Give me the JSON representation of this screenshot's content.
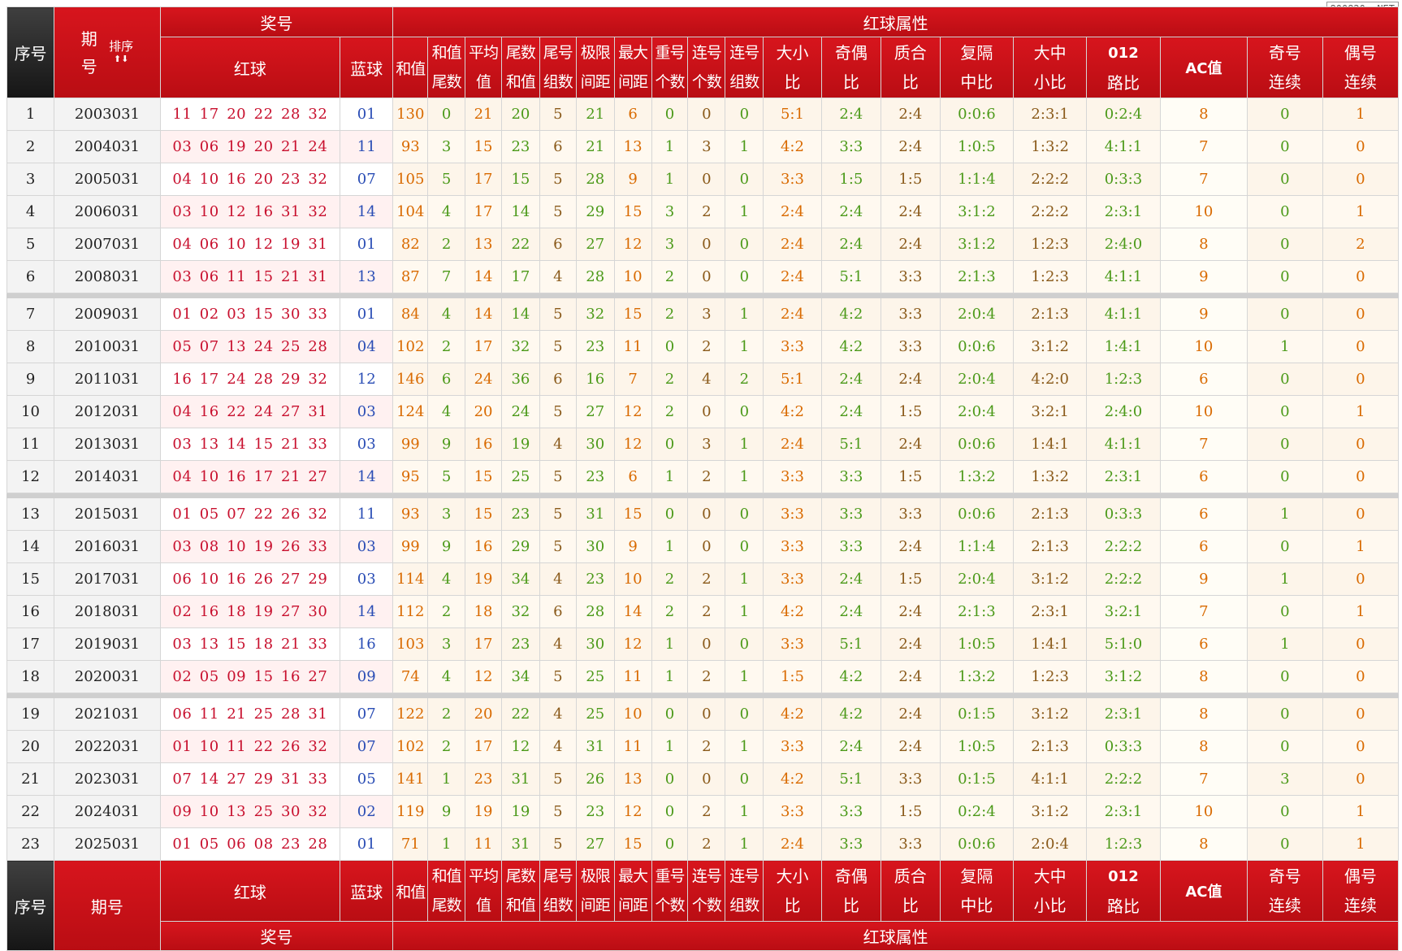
{
  "watermark": "800820. NET",
  "header": {
    "seq": "序号",
    "period_line1": "期",
    "period_line2": "号",
    "sort_label": "排序",
    "sort_arrows": "⬆⬇",
    "prize": "奖号",
    "red_attr": "红球属性",
    "red": "红球",
    "blue": "蓝球",
    "hezhi": "和值",
    "hezhi_tail_1": "和值",
    "hezhi_tail_2": "尾数",
    "avg_1": "平均",
    "avg_2": "值",
    "tail_sum_1": "尾数",
    "tail_sum_2": "和值",
    "tail_grp_1": "尾号",
    "tail_grp_2": "组数",
    "span_1": "极限",
    "span_2": "间距",
    "maxgap_1": "最大",
    "maxgap_2": "间距",
    "repeat_1": "重号",
    "repeat_2": "个数",
    "consec_1": "连号",
    "consec_2": "个数",
    "consecg_1": "连号",
    "consecg_2": "组数",
    "bigsmall_1": "大小",
    "bigsmall_2": "比",
    "oddeven_1": "奇偶",
    "oddeven_2": "比",
    "prime_1": "质合",
    "prime_2": "比",
    "repgap_1": "复隔",
    "repgap_2": "中比",
    "lms_1": "大中",
    "lms_2": "小比",
    "road_1": "012",
    "road_2": "路比",
    "ac": "AC值",
    "oddrun_1": "奇号",
    "oddrun_2": "连续",
    "evenrun_1": "偶号",
    "evenrun_2": "连续",
    "footer_period": "期号"
  },
  "rows": [
    {
      "n": "1",
      "p": "2003031",
      "red": "11 17 20 22 28 32",
      "blue": "01",
      "hz": "130",
      "hzw": "0",
      "avg": "21",
      "wsh": "20",
      "wzs": "5",
      "jx": "21",
      "zd": "6",
      "ch": "0",
      "lh": "0",
      "lz": "0",
      "dx": "5:1",
      "jo": "2:4",
      "zh": "2:4",
      "fg": "0:0:6",
      "dzx": "2:3:1",
      "road": "0:2:4",
      "ac": "8",
      "jl": "0",
      "ol": "1"
    },
    {
      "n": "2",
      "p": "2004031",
      "red": "03 06 19 20 21 24",
      "blue": "11",
      "hz": "93",
      "hzw": "3",
      "avg": "15",
      "wsh": "23",
      "wzs": "6",
      "jx": "21",
      "zd": "13",
      "ch": "1",
      "lh": "3",
      "lz": "1",
      "dx": "4:2",
      "jo": "3:3",
      "zh": "2:4",
      "fg": "1:0:5",
      "dzx": "1:3:2",
      "road": "4:1:1",
      "ac": "7",
      "jl": "0",
      "ol": "0"
    },
    {
      "n": "3",
      "p": "2005031",
      "red": "04 10 16 20 23 32",
      "blue": "07",
      "hz": "105",
      "hzw": "5",
      "avg": "17",
      "wsh": "15",
      "wzs": "5",
      "jx": "28",
      "zd": "9",
      "ch": "1",
      "lh": "0",
      "lz": "0",
      "dx": "3:3",
      "jo": "1:5",
      "zh": "1:5",
      "fg": "1:1:4",
      "dzx": "2:2:2",
      "road": "0:3:3",
      "ac": "7",
      "jl": "0",
      "ol": "0"
    },
    {
      "n": "4",
      "p": "2006031",
      "red": "03 10 12 16 31 32",
      "blue": "14",
      "hz": "104",
      "hzw": "4",
      "avg": "17",
      "wsh": "14",
      "wzs": "5",
      "jx": "29",
      "zd": "15",
      "ch": "3",
      "lh": "2",
      "lz": "1",
      "dx": "2:4",
      "jo": "2:4",
      "zh": "2:4",
      "fg": "3:1:2",
      "dzx": "2:2:2",
      "road": "2:3:1",
      "ac": "10",
      "jl": "0",
      "ol": "1"
    },
    {
      "n": "5",
      "p": "2007031",
      "red": "04 06 10 12 19 31",
      "blue": "01",
      "hz": "82",
      "hzw": "2",
      "avg": "13",
      "wsh": "22",
      "wzs": "6",
      "jx": "27",
      "zd": "12",
      "ch": "3",
      "lh": "0",
      "lz": "0",
      "dx": "2:4",
      "jo": "2:4",
      "zh": "2:4",
      "fg": "3:1:2",
      "dzx": "1:2:3",
      "road": "2:4:0",
      "ac": "8",
      "jl": "0",
      "ol": "2"
    },
    {
      "n": "6",
      "p": "2008031",
      "red": "03 06 11 15 21 31",
      "blue": "13",
      "hz": "87",
      "hzw": "7",
      "avg": "14",
      "wsh": "17",
      "wzs": "4",
      "jx": "28",
      "zd": "10",
      "ch": "2",
      "lh": "0",
      "lz": "0",
      "dx": "2:4",
      "jo": "5:1",
      "zh": "3:3",
      "fg": "2:1:3",
      "dzx": "1:2:3",
      "road": "4:1:1",
      "ac": "9",
      "jl": "0",
      "ol": "0"
    },
    {
      "n": "7",
      "p": "2009031",
      "red": "01 02 03 15 30 33",
      "blue": "01",
      "hz": "84",
      "hzw": "4",
      "avg": "14",
      "wsh": "14",
      "wzs": "5",
      "jx": "32",
      "zd": "15",
      "ch": "2",
      "lh": "3",
      "lz": "1",
      "dx": "2:4",
      "jo": "4:2",
      "zh": "3:3",
      "fg": "2:0:4",
      "dzx": "2:1:3",
      "road": "4:1:1",
      "ac": "9",
      "jl": "0",
      "ol": "0"
    },
    {
      "n": "8",
      "p": "2010031",
      "red": "05 07 13 24 25 28",
      "blue": "04",
      "hz": "102",
      "hzw": "2",
      "avg": "17",
      "wsh": "32",
      "wzs": "5",
      "jx": "23",
      "zd": "11",
      "ch": "0",
      "lh": "2",
      "lz": "1",
      "dx": "3:3",
      "jo": "4:2",
      "zh": "3:3",
      "fg": "0:0:6",
      "dzx": "3:1:2",
      "road": "1:4:1",
      "ac": "10",
      "jl": "1",
      "ol": "0"
    },
    {
      "n": "9",
      "p": "2011031",
      "red": "16 17 24 28 29 32",
      "blue": "12",
      "hz": "146",
      "hzw": "6",
      "avg": "24",
      "wsh": "36",
      "wzs": "6",
      "jx": "16",
      "zd": "7",
      "ch": "2",
      "lh": "4",
      "lz": "2",
      "dx": "5:1",
      "jo": "2:4",
      "zh": "2:4",
      "fg": "2:0:4",
      "dzx": "4:2:0",
      "road": "1:2:3",
      "ac": "6",
      "jl": "0",
      "ol": "0"
    },
    {
      "n": "10",
      "p": "2012031",
      "red": "04 16 22 24 27 31",
      "blue": "03",
      "hz": "124",
      "hzw": "4",
      "avg": "20",
      "wsh": "24",
      "wzs": "5",
      "jx": "27",
      "zd": "12",
      "ch": "2",
      "lh": "0",
      "lz": "0",
      "dx": "4:2",
      "jo": "2:4",
      "zh": "1:5",
      "fg": "2:0:4",
      "dzx": "3:2:1",
      "road": "2:4:0",
      "ac": "10",
      "jl": "0",
      "ol": "1"
    },
    {
      "n": "11",
      "p": "2013031",
      "red": "03 13 14 15 21 33",
      "blue": "03",
      "hz": "99",
      "hzw": "9",
      "avg": "16",
      "wsh": "19",
      "wzs": "4",
      "jx": "30",
      "zd": "12",
      "ch": "0",
      "lh": "3",
      "lz": "1",
      "dx": "2:4",
      "jo": "5:1",
      "zh": "2:4",
      "fg": "0:0:6",
      "dzx": "1:4:1",
      "road": "4:1:1",
      "ac": "7",
      "jl": "0",
      "ol": "0"
    },
    {
      "n": "12",
      "p": "2014031",
      "red": "04 10 16 17 21 27",
      "blue": "14",
      "hz": "95",
      "hzw": "5",
      "avg": "15",
      "wsh": "25",
      "wzs": "5",
      "jx": "23",
      "zd": "6",
      "ch": "1",
      "lh": "2",
      "lz": "1",
      "dx": "3:3",
      "jo": "3:3",
      "zh": "1:5",
      "fg": "1:3:2",
      "dzx": "1:3:2",
      "road": "2:3:1",
      "ac": "6",
      "jl": "0",
      "ol": "0"
    },
    {
      "n": "13",
      "p": "2015031",
      "red": "01 05 07 22 26 32",
      "blue": "11",
      "hz": "93",
      "hzw": "3",
      "avg": "15",
      "wsh": "23",
      "wzs": "5",
      "jx": "31",
      "zd": "15",
      "ch": "0",
      "lh": "0",
      "lz": "0",
      "dx": "3:3",
      "jo": "3:3",
      "zh": "3:3",
      "fg": "0:0:6",
      "dzx": "2:1:3",
      "road": "0:3:3",
      "ac": "6",
      "jl": "1",
      "ol": "0"
    },
    {
      "n": "14",
      "p": "2016031",
      "red": "03 08 10 19 26 33",
      "blue": "03",
      "hz": "99",
      "hzw": "9",
      "avg": "16",
      "wsh": "29",
      "wzs": "5",
      "jx": "30",
      "zd": "9",
      "ch": "1",
      "lh": "0",
      "lz": "0",
      "dx": "3:3",
      "jo": "3:3",
      "zh": "2:4",
      "fg": "1:1:4",
      "dzx": "2:1:3",
      "road": "2:2:2",
      "ac": "6",
      "jl": "0",
      "ol": "1"
    },
    {
      "n": "15",
      "p": "2017031",
      "red": "06 10 16 26 27 29",
      "blue": "03",
      "hz": "114",
      "hzw": "4",
      "avg": "19",
      "wsh": "34",
      "wzs": "4",
      "jx": "23",
      "zd": "10",
      "ch": "2",
      "lh": "2",
      "lz": "1",
      "dx": "3:3",
      "jo": "2:4",
      "zh": "1:5",
      "fg": "2:0:4",
      "dzx": "3:1:2",
      "road": "2:2:2",
      "ac": "9",
      "jl": "1",
      "ol": "0"
    },
    {
      "n": "16",
      "p": "2018031",
      "red": "02 16 18 19 27 30",
      "blue": "14",
      "hz": "112",
      "hzw": "2",
      "avg": "18",
      "wsh": "32",
      "wzs": "6",
      "jx": "28",
      "zd": "14",
      "ch": "2",
      "lh": "2",
      "lz": "1",
      "dx": "4:2",
      "jo": "2:4",
      "zh": "2:4",
      "fg": "2:1:3",
      "dzx": "2:3:1",
      "road": "3:2:1",
      "ac": "7",
      "jl": "0",
      "ol": "1"
    },
    {
      "n": "17",
      "p": "2019031",
      "red": "03 13 15 18 21 33",
      "blue": "16",
      "hz": "103",
      "hzw": "3",
      "avg": "17",
      "wsh": "23",
      "wzs": "4",
      "jx": "30",
      "zd": "12",
      "ch": "1",
      "lh": "0",
      "lz": "0",
      "dx": "3:3",
      "jo": "5:1",
      "zh": "2:4",
      "fg": "1:0:5",
      "dzx": "1:4:1",
      "road": "5:1:0",
      "ac": "6",
      "jl": "1",
      "ol": "0"
    },
    {
      "n": "18",
      "p": "2020031",
      "red": "02 05 09 15 16 27",
      "blue": "09",
      "hz": "74",
      "hzw": "4",
      "avg": "12",
      "wsh": "34",
      "wzs": "5",
      "jx": "25",
      "zd": "11",
      "ch": "1",
      "lh": "2",
      "lz": "1",
      "dx": "1:5",
      "jo": "4:2",
      "zh": "2:4",
      "fg": "1:3:2",
      "dzx": "1:2:3",
      "road": "3:1:2",
      "ac": "8",
      "jl": "0",
      "ol": "0"
    },
    {
      "n": "19",
      "p": "2021031",
      "red": "06 11 21 25 28 31",
      "blue": "07",
      "hz": "122",
      "hzw": "2",
      "avg": "20",
      "wsh": "22",
      "wzs": "4",
      "jx": "25",
      "zd": "10",
      "ch": "0",
      "lh": "0",
      "lz": "0",
      "dx": "4:2",
      "jo": "4:2",
      "zh": "2:4",
      "fg": "0:1:5",
      "dzx": "3:1:2",
      "road": "2:3:1",
      "ac": "8",
      "jl": "0",
      "ol": "0"
    },
    {
      "n": "20",
      "p": "2022031",
      "red": "01 10 11 22 26 32",
      "blue": "07",
      "hz": "102",
      "hzw": "2",
      "avg": "17",
      "wsh": "12",
      "wzs": "4",
      "jx": "31",
      "zd": "11",
      "ch": "1",
      "lh": "2",
      "lz": "1",
      "dx": "3:3",
      "jo": "2:4",
      "zh": "2:4",
      "fg": "1:0:5",
      "dzx": "2:1:3",
      "road": "0:3:3",
      "ac": "8",
      "jl": "0",
      "ol": "0"
    },
    {
      "n": "21",
      "p": "2023031",
      "red": "07 14 27 29 31 33",
      "blue": "05",
      "hz": "141",
      "hzw": "1",
      "avg": "23",
      "wsh": "31",
      "wzs": "5",
      "jx": "26",
      "zd": "13",
      "ch": "0",
      "lh": "0",
      "lz": "0",
      "dx": "4:2",
      "jo": "5:1",
      "zh": "3:3",
      "fg": "0:1:5",
      "dzx": "4:1:1",
      "road": "2:2:2",
      "ac": "7",
      "jl": "3",
      "ol": "0"
    },
    {
      "n": "22",
      "p": "2024031",
      "red": "09 10 13 25 30 32",
      "blue": "02",
      "hz": "119",
      "hzw": "9",
      "avg": "19",
      "wsh": "19",
      "wzs": "5",
      "jx": "23",
      "zd": "12",
      "ch": "0",
      "lh": "2",
      "lz": "1",
      "dx": "3:3",
      "jo": "3:3",
      "zh": "1:5",
      "fg": "0:2:4",
      "dzx": "3:1:2",
      "road": "2:3:1",
      "ac": "10",
      "jl": "0",
      "ol": "1"
    },
    {
      "n": "23",
      "p": "2025031",
      "red": "01 05 06 08 23 28",
      "blue": "01",
      "hz": "71",
      "hzw": "1",
      "avg": "11",
      "wsh": "31",
      "wzs": "5",
      "jx": "27",
      "zd": "15",
      "ch": "0",
      "lh": "2",
      "lz": "1",
      "dx": "2:4",
      "jo": "3:3",
      "zh": "3:3",
      "fg": "0:0:6",
      "dzx": "2:0:4",
      "road": "1:2:3",
      "ac": "8",
      "jl": "0",
      "ol": "1"
    }
  ]
}
